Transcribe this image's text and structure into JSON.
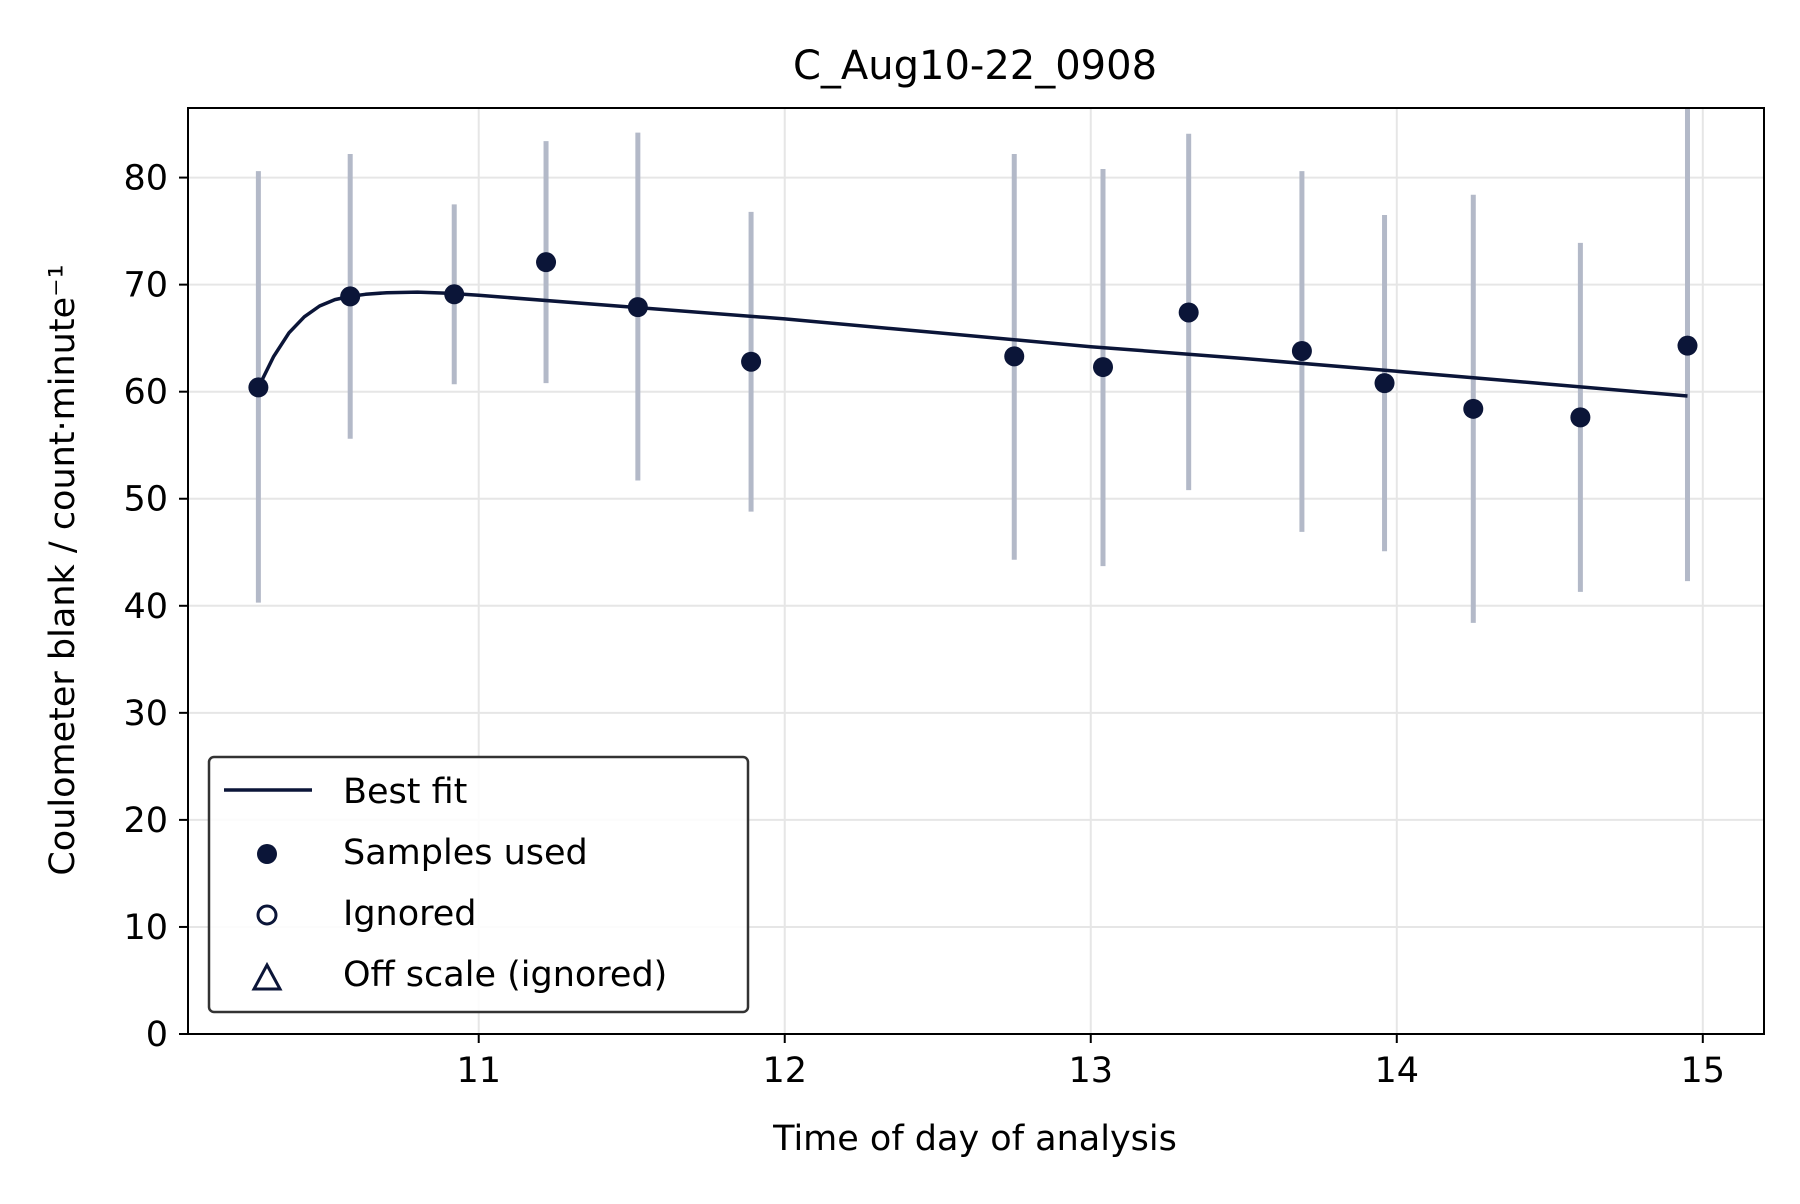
{
  "chart_data": {
    "type": "scatter",
    "title": "C_Aug10-22_0908",
    "xlabel": "Time of day of analysis",
    "ylabel": "Coulometer blank / count·minute⁻¹",
    "xlim": [
      10.05,
      15.2
    ],
    "ylim": [
      0,
      86.5
    ],
    "xticks": [
      11,
      12,
      13,
      14,
      15
    ],
    "yticks": [
      0,
      10,
      20,
      30,
      40,
      50,
      60,
      70,
      80
    ],
    "grid": true,
    "legend_position": "lower-left",
    "colors": {
      "fit": "#0b1538",
      "points": "#0b1538",
      "errorbars": "#b3b9c8",
      "grid": "#e6e6e6"
    },
    "series": [
      {
        "name": "Best fit",
        "kind": "line",
        "x": [
          10.28,
          10.33,
          10.38,
          10.43,
          10.48,
          10.53,
          10.58,
          10.63,
          10.7,
          10.8,
          10.9,
          11.0,
          11.5,
          12.0,
          12.5,
          13.0,
          13.5,
          14.0,
          14.5,
          14.95
        ],
        "y": [
          60.4,
          63.3,
          65.5,
          67.0,
          68.0,
          68.6,
          68.9,
          69.1,
          69.25,
          69.3,
          69.2,
          69.0,
          67.9,
          66.8,
          65.5,
          64.2,
          63.1,
          61.9,
          60.7,
          59.6
        ]
      },
      {
        "name": "Samples used",
        "kind": "points",
        "x": [
          10.28,
          10.58,
          10.92,
          11.22,
          11.52,
          11.89,
          12.75,
          13.04,
          13.32,
          13.69,
          13.96,
          14.25,
          14.6,
          14.95
        ],
        "y": [
          60.4,
          68.9,
          69.1,
          72.1,
          67.9,
          62.8,
          63.3,
          62.3,
          67.4,
          63.8,
          60.8,
          58.4,
          57.6,
          64.3
        ],
        "err_low": [
          40.3,
          55.6,
          60.7,
          60.8,
          51.7,
          48.8,
          44.3,
          43.7,
          50.8,
          46.9,
          45.1,
          38.4,
          41.3,
          42.3
        ],
        "err_high": [
          80.6,
          82.2,
          77.5,
          83.4,
          84.2,
          76.8,
          82.2,
          80.8,
          84.1,
          80.6,
          76.5,
          78.4,
          73.9,
          86.5
        ]
      },
      {
        "name": "Ignored",
        "kind": "points-hollow",
        "x": [],
        "y": []
      },
      {
        "name": "Off scale (ignored)",
        "kind": "triangles",
        "x": [],
        "y": []
      }
    ]
  }
}
